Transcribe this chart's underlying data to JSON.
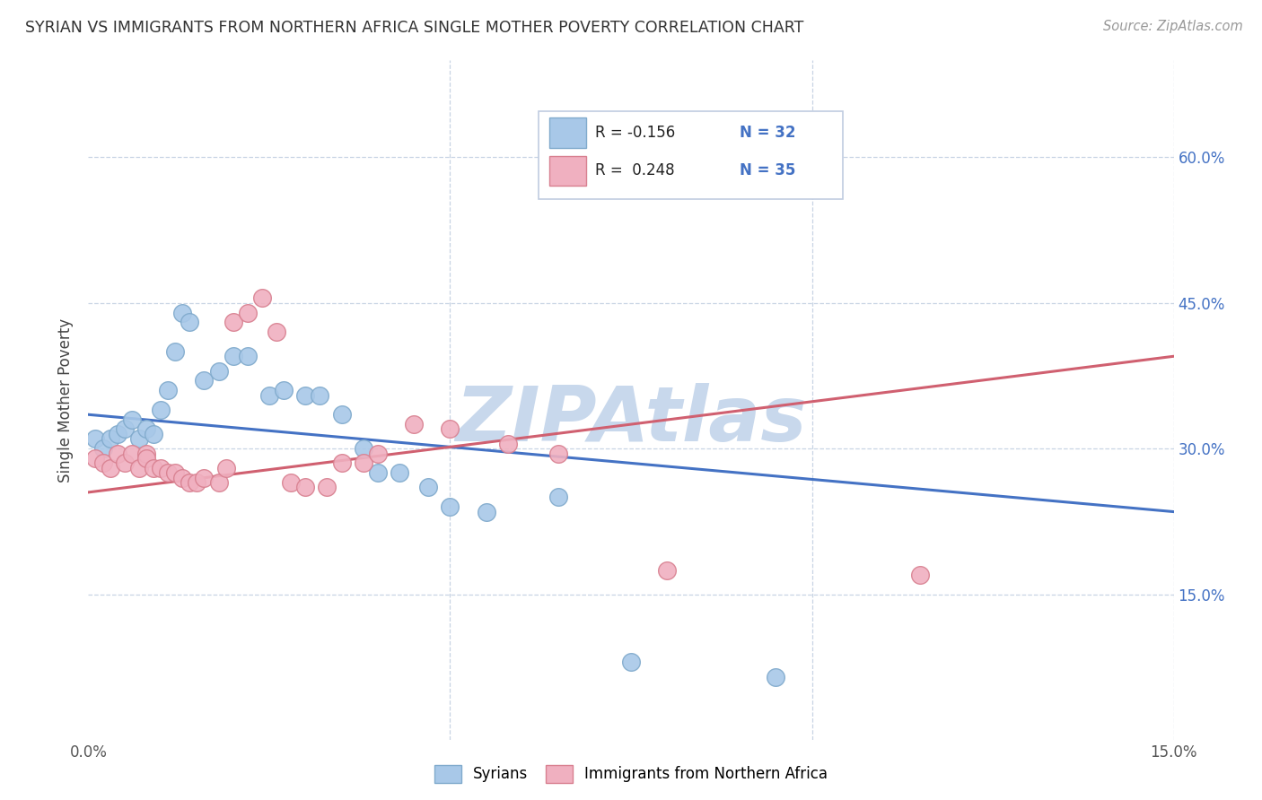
{
  "title": "SYRIAN VS IMMIGRANTS FROM NORTHERN AFRICA SINGLE MOTHER POVERTY CORRELATION CHART",
  "source": "Source: ZipAtlas.com",
  "ylabel": "Single Mother Poverty",
  "xlim": [
    0,
    0.15
  ],
  "ylim": [
    0,
    0.7
  ],
  "ytick_positions": [
    0.15,
    0.3,
    0.45,
    0.6
  ],
  "ytick_labels": [
    "15.0%",
    "30.0%",
    "45.0%",
    "60.0%"
  ],
  "syrians_color": "#a8c8e8",
  "syrians_edge": "#80aacc",
  "northafrica_color": "#f0b0c0",
  "northafrica_edge": "#d88090",
  "line_syrians": "#4472c4",
  "line_northafrica": "#d06070",
  "watermark_color": "#c8d8ec",
  "background_color": "#ffffff",
  "grid_color": "#c8d4e4",
  "syrians_x": [
    0.001,
    0.002,
    0.003,
    0.004,
    0.005,
    0.006,
    0.007,
    0.008,
    0.009,
    0.01,
    0.011,
    0.012,
    0.013,
    0.014,
    0.016,
    0.018,
    0.02,
    0.022,
    0.025,
    0.027,
    0.03,
    0.032,
    0.035,
    0.038,
    0.04,
    0.043,
    0.047,
    0.05,
    0.055,
    0.065,
    0.075,
    0.095
  ],
  "syrians_y": [
    0.31,
    0.3,
    0.31,
    0.315,
    0.32,
    0.33,
    0.31,
    0.32,
    0.315,
    0.34,
    0.36,
    0.4,
    0.44,
    0.43,
    0.37,
    0.38,
    0.395,
    0.395,
    0.355,
    0.36,
    0.355,
    0.355,
    0.335,
    0.3,
    0.275,
    0.275,
    0.26,
    0.24,
    0.235,
    0.25,
    0.08,
    0.065
  ],
  "northafrica_x": [
    0.001,
    0.002,
    0.003,
    0.004,
    0.005,
    0.006,
    0.007,
    0.008,
    0.008,
    0.009,
    0.01,
    0.011,
    0.012,
    0.013,
    0.014,
    0.015,
    0.016,
    0.018,
    0.019,
    0.02,
    0.022,
    0.024,
    0.026,
    0.028,
    0.03,
    0.033,
    0.035,
    0.038,
    0.04,
    0.045,
    0.05,
    0.058,
    0.065,
    0.08,
    0.115
  ],
  "northafrica_y": [
    0.29,
    0.285,
    0.28,
    0.295,
    0.285,
    0.295,
    0.28,
    0.295,
    0.29,
    0.28,
    0.28,
    0.275,
    0.275,
    0.27,
    0.265,
    0.265,
    0.27,
    0.265,
    0.28,
    0.43,
    0.44,
    0.455,
    0.42,
    0.265,
    0.26,
    0.26,
    0.285,
    0.285,
    0.295,
    0.325,
    0.32,
    0.305,
    0.295,
    0.175,
    0.17
  ],
  "legend_labels": [
    "Syrians",
    "Immigrants from Northern Africa"
  ],
  "legend_R_syrians": "R = -0.156",
  "legend_N_syrians": "N = 32",
  "legend_R_northafrica": "R =  0.248",
  "legend_N_northafrica": "N = 35",
  "line_sy_x0": 0.0,
  "line_sy_y0": 0.335,
  "line_sy_x1": 0.15,
  "line_sy_y1": 0.235,
  "line_na_x0": 0.0,
  "line_na_y0": 0.255,
  "line_na_x1": 0.15,
  "line_na_y1": 0.395
}
